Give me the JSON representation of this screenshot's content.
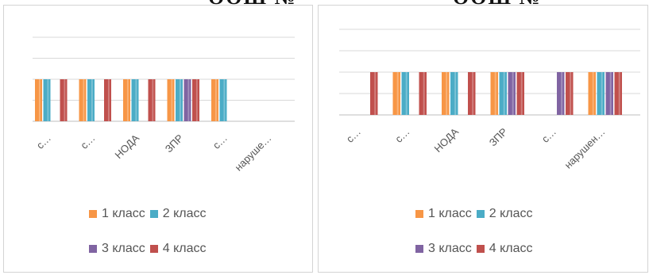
{
  "captions": [
    {
      "text": "ООШ №"
    },
    {
      "text": "ООШ №"
    }
  ],
  "colors": {
    "class1": "#F79646",
    "class2": "#4BACC6",
    "class3": "#8064A2",
    "class4": "#C0504D",
    "grid": "#D9D9D9",
    "axis": "#BFBFBF"
  },
  "chart_data": [
    {
      "type": "bar",
      "categories": [
        "с…",
        "с…",
        "НОДА",
        "ЗПР",
        "с…",
        "наруше…"
      ],
      "series": [
        {
          "name": "1 класс",
          "values": [
            1,
            1,
            1,
            1,
            1,
            0
          ]
        },
        {
          "name": "2 класс",
          "values": [
            1,
            1,
            1,
            1,
            1,
            0
          ]
        },
        {
          "name": "3 класс",
          "values": [
            0,
            0,
            0,
            1,
            0,
            0
          ]
        },
        {
          "name": "4 класс",
          "values": [
            1,
            1,
            1,
            1,
            0,
            0
          ]
        }
      ],
      "ylim": [
        0,
        2
      ],
      "grid": true,
      "legend": "bottom"
    },
    {
      "type": "bar",
      "categories": [
        "с…",
        "с…",
        "НОДА",
        "ЗПР",
        "с…",
        "нарушен…"
      ],
      "series": [
        {
          "name": "1 класс",
          "values": [
            0,
            1,
            1,
            1,
            0,
            1
          ]
        },
        {
          "name": "2 класс",
          "values": [
            0,
            1,
            1,
            1,
            0,
            1
          ]
        },
        {
          "name": "3 класс",
          "values": [
            0,
            0,
            0,
            1,
            1,
            1
          ]
        },
        {
          "name": "4 класс",
          "values": [
            1,
            1,
            1,
            1,
            1,
            1
          ]
        }
      ],
      "ylim": [
        0,
        2
      ],
      "grid": true,
      "legend": "bottom"
    }
  ]
}
